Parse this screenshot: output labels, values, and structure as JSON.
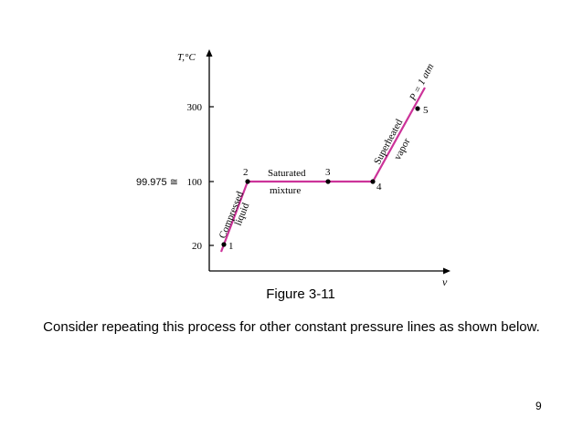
{
  "diagram": {
    "y_axis_label": "T,°C",
    "x_axis_label": "v",
    "y_ticks": [
      "300",
      "100",
      "20"
    ],
    "annotation": "99.975 ≅",
    "points": [
      "1",
      "2",
      "3",
      "4",
      "5"
    ],
    "regions": {
      "compressed_1": "Compressed",
      "compressed_2": "liquid",
      "saturated_1": "Saturated",
      "saturated_2": "mixture",
      "superheated_1": "Superheated",
      "superheated_2": "vapor",
      "pressure": "P = 1 atm"
    },
    "line_color": "#cc3399"
  },
  "figure_caption": "Figure 3-11",
  "body_text": "Consider repeating this process for other constant pressure lines as shown below.",
  "page_number": "9"
}
